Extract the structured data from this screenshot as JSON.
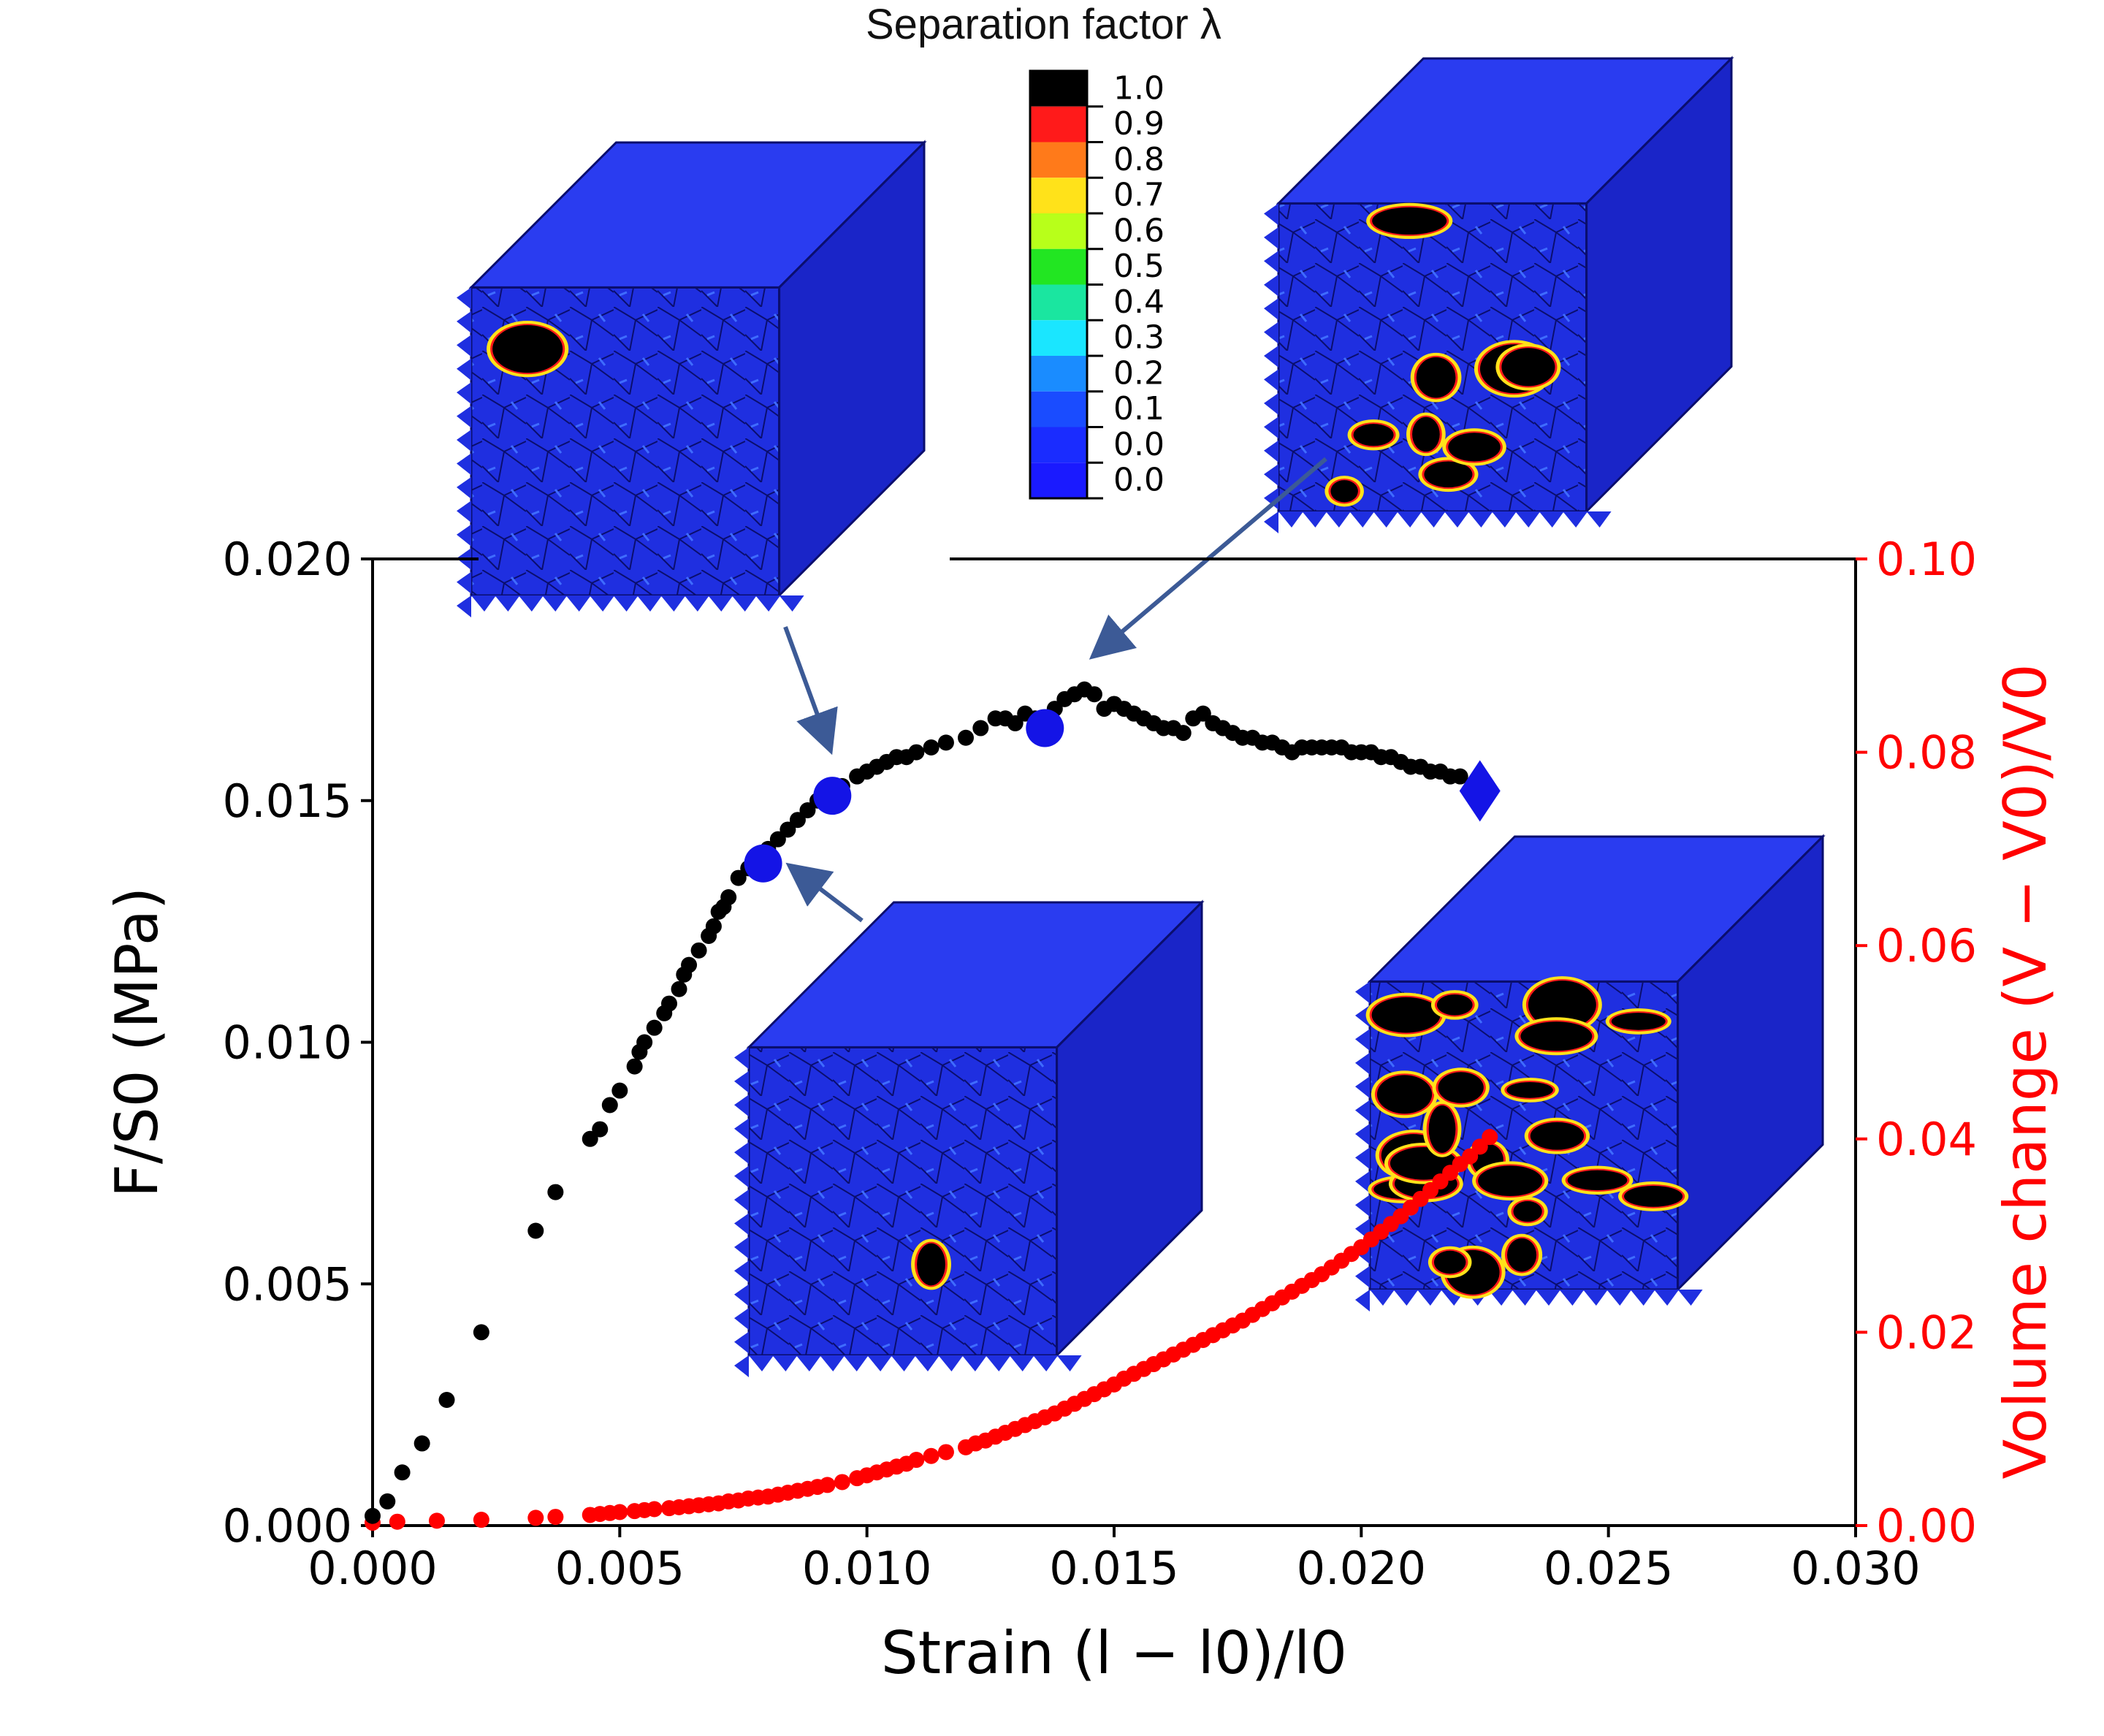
{
  "chart_data": {
    "type": "scatter",
    "xlabel": "Strain (l − l0)/l0",
    "ylabel_left": "F/S0 (MPa)",
    "ylabel_right": "Volume change (V − V0)/V0",
    "xlim": [
      0.0,
      0.03
    ],
    "ylim_left": [
      0.0,
      0.02
    ],
    "ylim_right": [
      0.0,
      0.1
    ],
    "x_ticks": [
      "0.000",
      "0.005",
      "0.010",
      "0.015",
      "0.020",
      "0.025",
      "0.030"
    ],
    "y_left_ticks": [
      "0.000",
      "0.005",
      "0.010",
      "0.015",
      "0.020"
    ],
    "y_right_ticks": [
      "0.00",
      "0.02",
      "0.04",
      "0.06",
      "0.08",
      "0.10"
    ],
    "colors": {
      "stress": "#000000",
      "volume": "#ff0000",
      "markers": "#1414e6",
      "arrows": "#3c5a96",
      "right_axis": "#ff0000"
    },
    "series": [
      {
        "axis": "left",
        "x": [
          0.0,
          0.0003,
          0.0006,
          0.001,
          0.0015,
          0.0022,
          0.0033,
          0.0037,
          0.0044,
          0.0046,
          0.0048,
          0.005,
          0.0053,
          0.0054,
          0.0055,
          0.0057,
          0.0059,
          0.006,
          0.0062,
          0.0063,
          0.0064,
          0.0066,
          0.0068,
          0.0069,
          0.007,
          0.0071,
          0.0072,
          0.0074,
          0.0076,
          0.0078,
          0.008,
          0.0082,
          0.0084,
          0.0086,
          0.0088,
          0.009,
          0.0092,
          0.0095,
          0.0098,
          0.01,
          0.0102,
          0.0104,
          0.0106,
          0.0108,
          0.011,
          0.0113,
          0.0116,
          0.012,
          0.0123,
          0.0126,
          0.0128,
          0.013,
          0.0132,
          0.0134,
          0.0136,
          0.0138,
          0.014,
          0.0142,
          0.0144,
          0.0146,
          0.0148,
          0.015,
          0.0152,
          0.0154,
          0.0156,
          0.0158,
          0.016,
          0.0162,
          0.0164,
          0.0166,
          0.0168,
          0.017,
          0.0172,
          0.0174,
          0.0176,
          0.0178,
          0.018,
          0.0182,
          0.0184,
          0.0186,
          0.0188,
          0.019,
          0.0192,
          0.0194,
          0.0196,
          0.0198,
          0.02,
          0.0202,
          0.0204,
          0.0206,
          0.0208,
          0.021,
          0.0212,
          0.0214,
          0.0216,
          0.0218,
          0.022
        ],
        "y": [
          0.0002,
          0.0005,
          0.0011,
          0.0017,
          0.0026,
          0.004,
          0.0061,
          0.0069,
          0.008,
          0.0082,
          0.0087,
          0.009,
          0.0095,
          0.0098,
          0.01,
          0.0103,
          0.0106,
          0.0108,
          0.0111,
          0.0114,
          0.0116,
          0.0119,
          0.0122,
          0.0124,
          0.0127,
          0.0128,
          0.013,
          0.0134,
          0.0136,
          0.0138,
          0.014,
          0.0142,
          0.0144,
          0.0146,
          0.0148,
          0.015,
          0.0151,
          0.0153,
          0.0155,
          0.0156,
          0.0157,
          0.0158,
          0.0159,
          0.0159,
          0.016,
          0.0161,
          0.0162,
          0.0163,
          0.0165,
          0.0167,
          0.0167,
          0.0166,
          0.0168,
          0.0167,
          0.0166,
          0.0169,
          0.0171,
          0.0172,
          0.0173,
          0.0172,
          0.0169,
          0.017,
          0.0169,
          0.0168,
          0.0167,
          0.0166,
          0.0165,
          0.0165,
          0.0164,
          0.0167,
          0.0168,
          0.0166,
          0.0165,
          0.0164,
          0.0163,
          0.0163,
          0.0162,
          0.0162,
          0.0161,
          0.016,
          0.0161,
          0.0161,
          0.0161,
          0.0161,
          0.0161,
          0.016,
          0.016,
          0.016,
          0.0159,
          0.0159,
          0.0158,
          0.0157,
          0.0157,
          0.0156,
          0.0156,
          0.0155,
          0.0155
        ]
      },
      {
        "axis": "right",
        "x": [
          0.0,
          0.0005,
          0.0013,
          0.0022,
          0.0033,
          0.0037,
          0.0044,
          0.0046,
          0.0048,
          0.005,
          0.0053,
          0.0055,
          0.0057,
          0.006,
          0.0062,
          0.0064,
          0.0066,
          0.0068,
          0.007,
          0.0072,
          0.0074,
          0.0076,
          0.0078,
          0.008,
          0.0082,
          0.0084,
          0.0086,
          0.0088,
          0.009,
          0.0092,
          0.0095,
          0.0098,
          0.01,
          0.0102,
          0.0104,
          0.0106,
          0.0108,
          0.011,
          0.0113,
          0.0116,
          0.012,
          0.0122,
          0.0124,
          0.0126,
          0.0128,
          0.013,
          0.0132,
          0.0134,
          0.0136,
          0.0138,
          0.014,
          0.0142,
          0.0144,
          0.0146,
          0.0148,
          0.015,
          0.0152,
          0.0154,
          0.0156,
          0.0158,
          0.016,
          0.0162,
          0.0164,
          0.0166,
          0.0168,
          0.017,
          0.0172,
          0.0174,
          0.0176,
          0.0178,
          0.018,
          0.0182,
          0.0184,
          0.0186,
          0.0188,
          0.019,
          0.0192,
          0.0194,
          0.0196,
          0.0198,
          0.02,
          0.0202,
          0.0204,
          0.0206,
          0.0208,
          0.021,
          0.0212,
          0.0214,
          0.0216,
          0.0218,
          0.022,
          0.0222,
          0.0224,
          0.0226
        ],
        "y": [
          0.0003,
          0.0004,
          0.0005,
          0.0006,
          0.0008,
          0.0009,
          0.0011,
          0.0012,
          0.0013,
          0.0014,
          0.0015,
          0.0016,
          0.0017,
          0.0018,
          0.0019,
          0.002,
          0.0021,
          0.0022,
          0.0023,
          0.0025,
          0.0026,
          0.0028,
          0.0029,
          0.003,
          0.0032,
          0.0034,
          0.0036,
          0.0038,
          0.004,
          0.0042,
          0.0045,
          0.0049,
          0.0052,
          0.0055,
          0.0058,
          0.0061,
          0.0064,
          0.0068,
          0.0072,
          0.0076,
          0.0081,
          0.0085,
          0.0088,
          0.0092,
          0.0096,
          0.01,
          0.0104,
          0.0108,
          0.0112,
          0.0116,
          0.0121,
          0.0126,
          0.0131,
          0.0136,
          0.0141,
          0.0146,
          0.0152,
          0.0157,
          0.0162,
          0.0167,
          0.0172,
          0.0177,
          0.0182,
          0.0187,
          0.0192,
          0.0197,
          0.0202,
          0.0207,
          0.0212,
          0.0218,
          0.0224,
          0.023,
          0.0236,
          0.0242,
          0.0248,
          0.0254,
          0.026,
          0.0267,
          0.0274,
          0.0281,
          0.0288,
          0.0296,
          0.0304,
          0.0312,
          0.032,
          0.0329,
          0.0338,
          0.0347,
          0.0356,
          0.0365,
          0.0374,
          0.0382,
          0.0392,
          0.0402
        ]
      }
    ],
    "highlight_points": [
      {
        "x": 0.0079,
        "y": 0.0137,
        "shape": "circle"
      },
      {
        "x": 0.0093,
        "y": 0.0151,
        "shape": "circle"
      },
      {
        "x": 0.0136,
        "y": 0.0165,
        "shape": "circle"
      },
      {
        "x": 0.0224,
        "y": 0.0152,
        "shape": "diamond"
      }
    ],
    "colorbar": {
      "title": "Separation factor λ",
      "labels": [
        "1.0",
        "0.9",
        "0.8",
        "0.7",
        "0.6",
        "0.5",
        "0.4",
        "0.3",
        "0.2",
        "0.1",
        "0.0",
        "0.0"
      ],
      "colors": [
        "#000000",
        "#ff1a1a",
        "#ff7a1a",
        "#ffe21a",
        "#b8ff1a",
        "#22e622",
        "#1ae6a0",
        "#1ae6ff",
        "#1a8cff",
        "#1a4cff",
        "#1a2cff",
        "#1a1aff"
      ]
    }
  }
}
